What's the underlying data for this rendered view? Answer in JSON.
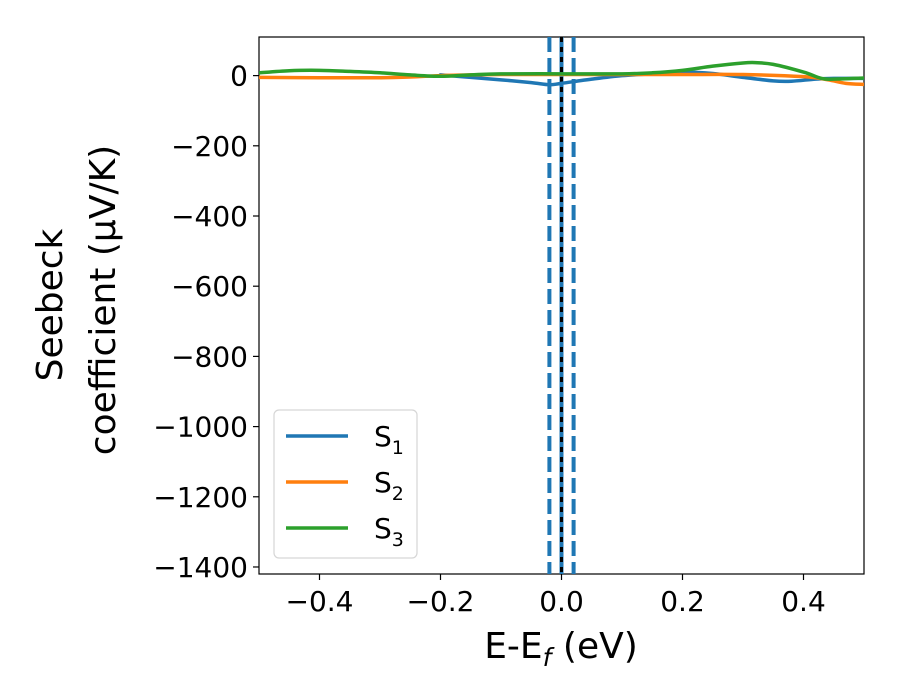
{
  "chart_data": {
    "type": "line",
    "xlabel": {
      "main": "E-E",
      "sub": "f",
      "unit": " (eV)"
    },
    "ylabel": {
      "line1": "Seebeck",
      "line2": "coefficient  (μV/K)"
    },
    "xlim": [
      -0.5,
      0.5
    ],
    "ylim": [
      -1420,
      110
    ],
    "xticks": [
      -0.4,
      -0.2,
      0.0,
      0.2,
      0.4
    ],
    "xtick_labels": [
      "−0.4",
      "−0.2",
      "0.0",
      "0.2",
      "0.4"
    ],
    "yticks": [
      0,
      -200,
      -400,
      -600,
      -800,
      -1000,
      -1200,
      -1400
    ],
    "ytick_labels": [
      "0",
      "−200",
      "−400",
      "−600",
      "−800",
      "−1000",
      "−1200",
      "−1400"
    ],
    "grid": false,
    "legend_position": "lower-left",
    "vertical_lines": [
      {
        "x": -0.02,
        "color": "#1f77b4",
        "style": "dashed"
      },
      {
        "x": 0.02,
        "color": "#1f77b4",
        "style": "dashed"
      },
      {
        "x": 0.0,
        "color": "#1f77b4",
        "style": "solid"
      },
      {
        "x": 0.0,
        "color": "#000000",
        "style": "dotted"
      }
    ],
    "series": [
      {
        "name": "S",
        "sub": "1",
        "color": "#1f77b4",
        "x": [
          -0.2,
          -0.15,
          -0.1,
          -0.05,
          -0.02,
          0.0,
          0.05,
          0.1,
          0.15,
          0.2,
          0.25,
          0.3,
          0.35,
          0.38,
          0.42,
          0.45,
          0.5
        ],
        "y": [
          2,
          -5,
          -12,
          -20,
          -26,
          -22,
          -10,
          0,
          5,
          10,
          6,
          -5,
          -15,
          -16,
          -10,
          -8,
          -8
        ]
      },
      {
        "name": "S",
        "sub": "2",
        "color": "#ff7f0e",
        "x": [
          -0.5,
          -0.4,
          -0.3,
          -0.25,
          -0.2,
          -0.15,
          -0.1,
          0.0,
          0.1,
          0.2,
          0.3,
          0.4,
          0.44,
          0.47,
          0.5
        ],
        "y": [
          -5,
          -6,
          -6,
          -4,
          0,
          2,
          3,
          3,
          3,
          3,
          3,
          -3,
          -12,
          -22,
          -25
        ]
      },
      {
        "name": "S",
        "sub": "3",
        "color": "#2ca02c",
        "x": [
          -0.5,
          -0.45,
          -0.4,
          -0.35,
          -0.3,
          -0.25,
          -0.2,
          -0.15,
          -0.1,
          0.0,
          0.1,
          0.15,
          0.2,
          0.25,
          0.3,
          0.32,
          0.35,
          0.4,
          0.43,
          0.45,
          0.5
        ],
        "y": [
          8,
          14,
          15,
          12,
          8,
          2,
          -2,
          2,
          5,
          5,
          5,
          8,
          15,
          27,
          36,
          37,
          32,
          10,
          -8,
          -10,
          -7
        ]
      }
    ]
  }
}
